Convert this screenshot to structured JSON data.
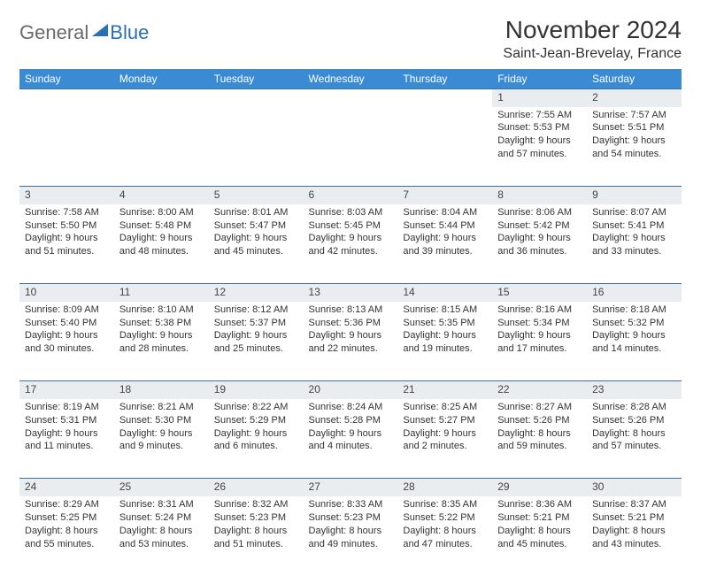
{
  "brand": {
    "part1": "General",
    "part2": "Blue"
  },
  "header": {
    "month_title": "November 2024",
    "location": "Saint-Jean-Brevelay, France"
  },
  "colors": {
    "header_bg": "#3b8bd4",
    "header_text": "#ffffff",
    "row_border": "#3b6fa0",
    "daynum_bg": "#e9edf0",
    "brand_gray": "#6a6a6a",
    "brand_blue": "#2a6fb5"
  },
  "calendar": {
    "weekdays": [
      "Sunday",
      "Monday",
      "Tuesday",
      "Wednesday",
      "Thursday",
      "Friday",
      "Saturday"
    ],
    "weeks": [
      [
        null,
        null,
        null,
        null,
        null,
        {
          "num": "1",
          "sunrise": "Sunrise: 7:55 AM",
          "sunset": "Sunset: 5:53 PM",
          "daylight": "Daylight: 9 hours and 57 minutes."
        },
        {
          "num": "2",
          "sunrise": "Sunrise: 7:57 AM",
          "sunset": "Sunset: 5:51 PM",
          "daylight": "Daylight: 9 hours and 54 minutes."
        }
      ],
      [
        {
          "num": "3",
          "sunrise": "Sunrise: 7:58 AM",
          "sunset": "Sunset: 5:50 PM",
          "daylight": "Daylight: 9 hours and 51 minutes."
        },
        {
          "num": "4",
          "sunrise": "Sunrise: 8:00 AM",
          "sunset": "Sunset: 5:48 PM",
          "daylight": "Daylight: 9 hours and 48 minutes."
        },
        {
          "num": "5",
          "sunrise": "Sunrise: 8:01 AM",
          "sunset": "Sunset: 5:47 PM",
          "daylight": "Daylight: 9 hours and 45 minutes."
        },
        {
          "num": "6",
          "sunrise": "Sunrise: 8:03 AM",
          "sunset": "Sunset: 5:45 PM",
          "daylight": "Daylight: 9 hours and 42 minutes."
        },
        {
          "num": "7",
          "sunrise": "Sunrise: 8:04 AM",
          "sunset": "Sunset: 5:44 PM",
          "daylight": "Daylight: 9 hours and 39 minutes."
        },
        {
          "num": "8",
          "sunrise": "Sunrise: 8:06 AM",
          "sunset": "Sunset: 5:42 PM",
          "daylight": "Daylight: 9 hours and 36 minutes."
        },
        {
          "num": "9",
          "sunrise": "Sunrise: 8:07 AM",
          "sunset": "Sunset: 5:41 PM",
          "daylight": "Daylight: 9 hours and 33 minutes."
        }
      ],
      [
        {
          "num": "10",
          "sunrise": "Sunrise: 8:09 AM",
          "sunset": "Sunset: 5:40 PM",
          "daylight": "Daylight: 9 hours and 30 minutes."
        },
        {
          "num": "11",
          "sunrise": "Sunrise: 8:10 AM",
          "sunset": "Sunset: 5:38 PM",
          "daylight": "Daylight: 9 hours and 28 minutes."
        },
        {
          "num": "12",
          "sunrise": "Sunrise: 8:12 AM",
          "sunset": "Sunset: 5:37 PM",
          "daylight": "Daylight: 9 hours and 25 minutes."
        },
        {
          "num": "13",
          "sunrise": "Sunrise: 8:13 AM",
          "sunset": "Sunset: 5:36 PM",
          "daylight": "Daylight: 9 hours and 22 minutes."
        },
        {
          "num": "14",
          "sunrise": "Sunrise: 8:15 AM",
          "sunset": "Sunset: 5:35 PM",
          "daylight": "Daylight: 9 hours and 19 minutes."
        },
        {
          "num": "15",
          "sunrise": "Sunrise: 8:16 AM",
          "sunset": "Sunset: 5:34 PM",
          "daylight": "Daylight: 9 hours and 17 minutes."
        },
        {
          "num": "16",
          "sunrise": "Sunrise: 8:18 AM",
          "sunset": "Sunset: 5:32 PM",
          "daylight": "Daylight: 9 hours and 14 minutes."
        }
      ],
      [
        {
          "num": "17",
          "sunrise": "Sunrise: 8:19 AM",
          "sunset": "Sunset: 5:31 PM",
          "daylight": "Daylight: 9 hours and 11 minutes."
        },
        {
          "num": "18",
          "sunrise": "Sunrise: 8:21 AM",
          "sunset": "Sunset: 5:30 PM",
          "daylight": "Daylight: 9 hours and 9 minutes."
        },
        {
          "num": "19",
          "sunrise": "Sunrise: 8:22 AM",
          "sunset": "Sunset: 5:29 PM",
          "daylight": "Daylight: 9 hours and 6 minutes."
        },
        {
          "num": "20",
          "sunrise": "Sunrise: 8:24 AM",
          "sunset": "Sunset: 5:28 PM",
          "daylight": "Daylight: 9 hours and 4 minutes."
        },
        {
          "num": "21",
          "sunrise": "Sunrise: 8:25 AM",
          "sunset": "Sunset: 5:27 PM",
          "daylight": "Daylight: 9 hours and 2 minutes."
        },
        {
          "num": "22",
          "sunrise": "Sunrise: 8:27 AM",
          "sunset": "Sunset: 5:26 PM",
          "daylight": "Daylight: 8 hours and 59 minutes."
        },
        {
          "num": "23",
          "sunrise": "Sunrise: 8:28 AM",
          "sunset": "Sunset: 5:26 PM",
          "daylight": "Daylight: 8 hours and 57 minutes."
        }
      ],
      [
        {
          "num": "24",
          "sunrise": "Sunrise: 8:29 AM",
          "sunset": "Sunset: 5:25 PM",
          "daylight": "Daylight: 8 hours and 55 minutes."
        },
        {
          "num": "25",
          "sunrise": "Sunrise: 8:31 AM",
          "sunset": "Sunset: 5:24 PM",
          "daylight": "Daylight: 8 hours and 53 minutes."
        },
        {
          "num": "26",
          "sunrise": "Sunrise: 8:32 AM",
          "sunset": "Sunset: 5:23 PM",
          "daylight": "Daylight: 8 hours and 51 minutes."
        },
        {
          "num": "27",
          "sunrise": "Sunrise: 8:33 AM",
          "sunset": "Sunset: 5:23 PM",
          "daylight": "Daylight: 8 hours and 49 minutes."
        },
        {
          "num": "28",
          "sunrise": "Sunrise: 8:35 AM",
          "sunset": "Sunset: 5:22 PM",
          "daylight": "Daylight: 8 hours and 47 minutes."
        },
        {
          "num": "29",
          "sunrise": "Sunrise: 8:36 AM",
          "sunset": "Sunset: 5:21 PM",
          "daylight": "Daylight: 8 hours and 45 minutes."
        },
        {
          "num": "30",
          "sunrise": "Sunrise: 8:37 AM",
          "sunset": "Sunset: 5:21 PM",
          "daylight": "Daylight: 8 hours and 43 minutes."
        }
      ]
    ]
  }
}
